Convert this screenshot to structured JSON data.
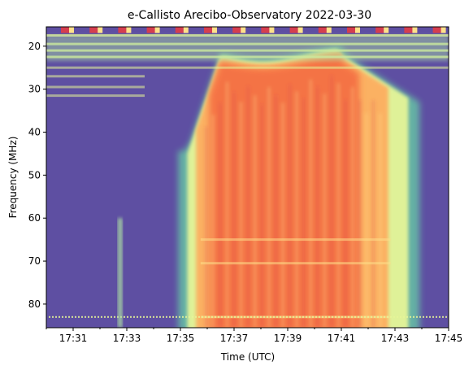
{
  "chart_data": {
    "type": "heatmap",
    "title": "e-Callisto Arecibo-Observatory 2022-03-30",
    "xlabel": "Time (UTC)",
    "ylabel": "Frequency (MHz)",
    "xlim": [
      "17:30:00",
      "17:45:00"
    ],
    "ylim": [
      85.5,
      15.5
    ],
    "x_ticks": [
      "17:31",
      "17:33",
      "17:35",
      "17:37",
      "17:39",
      "17:41",
      "17:43",
      "17:45"
    ],
    "x_minor_ticks": [
      "17:30",
      "17:32",
      "17:34",
      "17:36",
      "17:38",
      "17:40",
      "17:42",
      "17:44"
    ],
    "y_ticks": [
      20,
      30,
      40,
      50,
      60,
      70,
      80
    ],
    "grid": false,
    "colormap": "Spectral_r",
    "background_color": "#5e4fa2",
    "burst": {
      "description": "broadband radio burst",
      "onset_time": "17:35:15",
      "end_time": "17:43:30",
      "peak_time_range": [
        "17:36:30",
        "17:41:00"
      ],
      "low_freq_edge_at_onset_MHz": 45,
      "low_freq_edge_at_peak_MHz": 22,
      "freq_range_MHz": [
        22,
        85
      ]
    },
    "interference_bands_MHz": [
      17.5,
      19.5,
      21,
      22.5,
      25,
      27,
      29.5,
      31.5,
      65,
      70.5,
      83
    ],
    "calibration_markers_row_MHz": 16,
    "early_spike_time": "17:32:45"
  }
}
